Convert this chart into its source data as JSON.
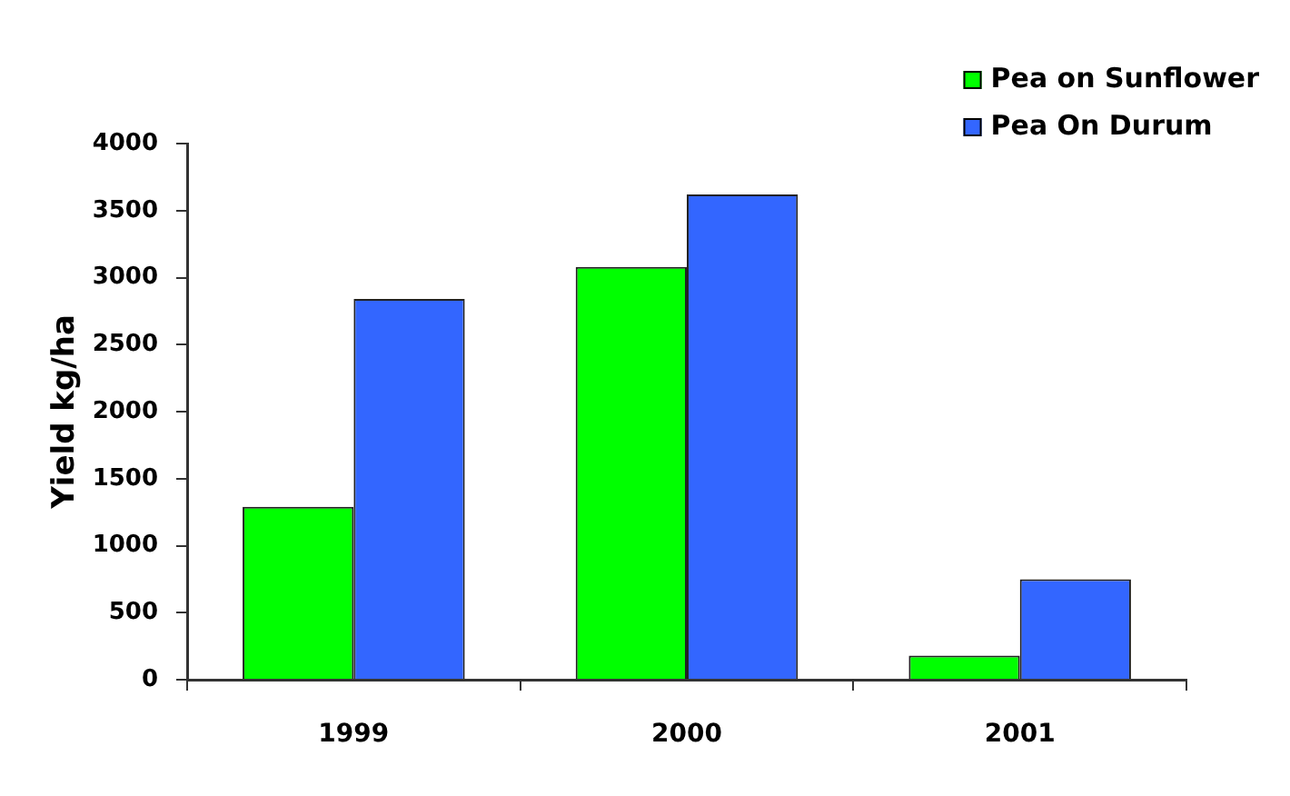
{
  "chart_data": {
    "type": "bar",
    "ylabel": "Yield kg/ha",
    "categories": [
      "1999",
      "2000",
      "2001"
    ],
    "series": [
      {
        "name": "Pea on Sunflower",
        "color": "#00ff00",
        "values": [
          1290,
          3080,
          180
        ]
      },
      {
        "name": "Pea On Durum",
        "color": "#3366ff",
        "values": [
          2840,
          3620,
          750
        ]
      }
    ],
    "ylim": [
      0,
      4000
    ],
    "yticks": [
      0,
      500,
      1000,
      1500,
      2000,
      2500,
      3000,
      3500,
      4000
    ],
    "legend": "top right"
  }
}
